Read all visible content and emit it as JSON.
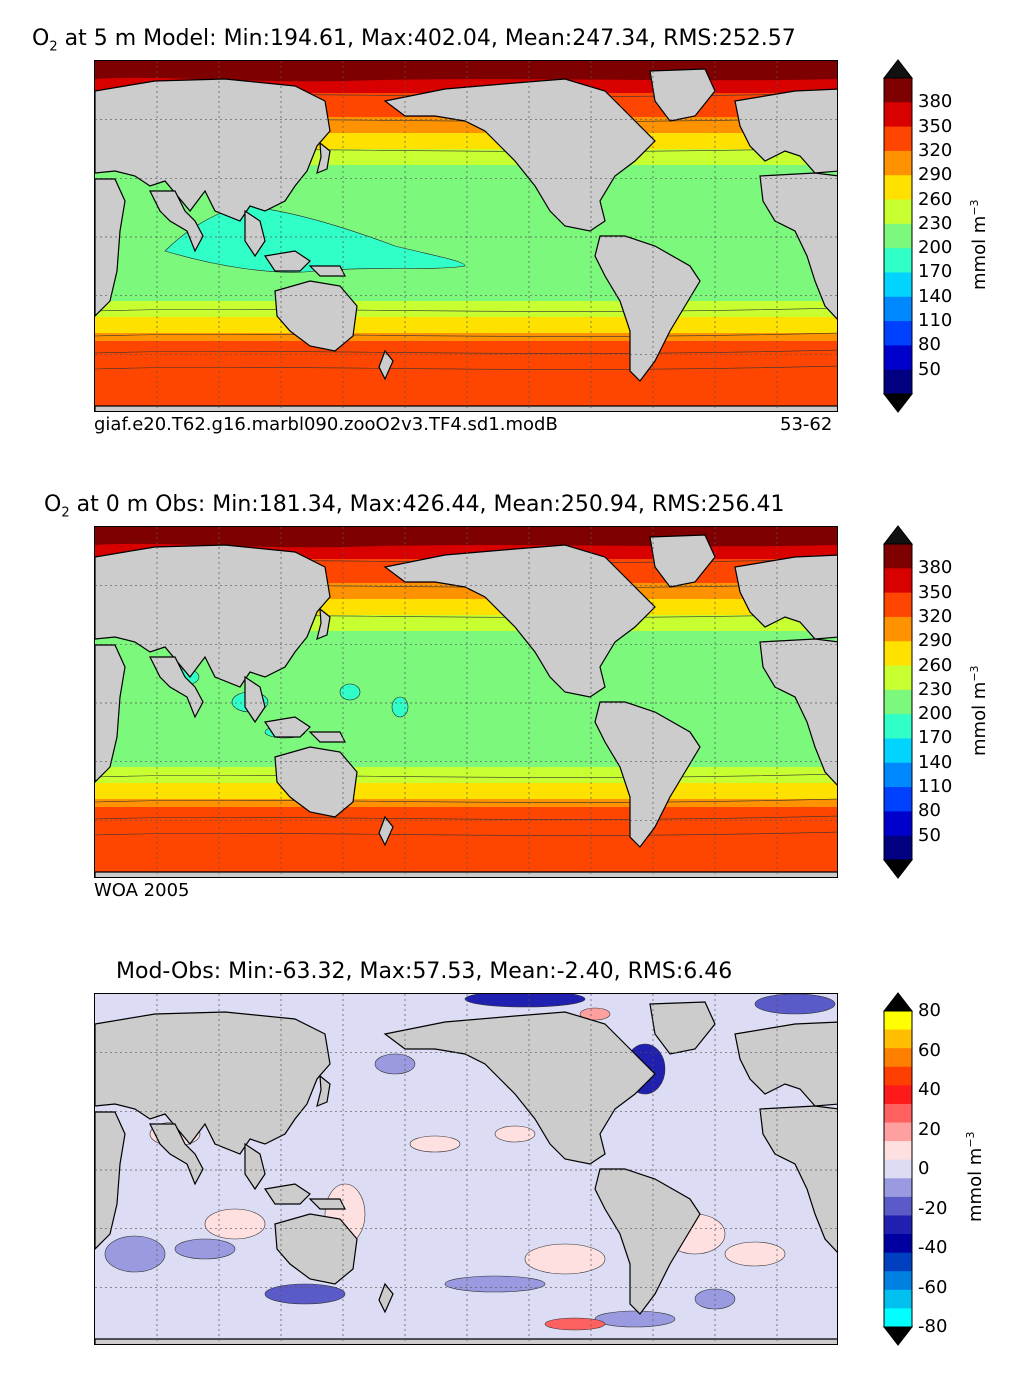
{
  "panels": [
    {
      "title_prefix": "O",
      "title_sub": "2",
      "title_rest": " at 5 m Model: Min:194.61, Max:402.04, Mean:247.34, RMS:252.57",
      "caption_left": "giaf.e20.T62.g16.marbl090.zooO2v3.TF4.sd1.modB",
      "caption_right": "53-62",
      "colorbar_ticks": [
        "380",
        "350",
        "320",
        "290",
        "260",
        "230",
        "200",
        "170",
        "140",
        "110",
        "80",
        "50"
      ],
      "colorbar_colors": [
        "#7f0000",
        "#d90000",
        "#ff4600",
        "#ff9200",
        "#ffe100",
        "#c8ff30",
        "#7cf87c",
        "#30ffc8",
        "#00d4ff",
        "#0088ff",
        "#0040ff",
        "#0000cc",
        "#000080"
      ],
      "unit_label": "mmol m",
      "unit_sup": "−3"
    },
    {
      "title_prefix": "O",
      "title_sub": "2",
      "title_rest": " at 0 m Obs: Min:181.34, Max:426.44, Mean:250.94, RMS:256.41",
      "caption_left": "WOA 2005",
      "caption_right": "",
      "colorbar_ticks": [
        "380",
        "350",
        "320",
        "290",
        "260",
        "230",
        "200",
        "170",
        "140",
        "110",
        "80",
        "50"
      ],
      "colorbar_colors": [
        "#7f0000",
        "#d90000",
        "#ff4600",
        "#ff9200",
        "#ffe100",
        "#c8ff30",
        "#7cf87c",
        "#30ffc8",
        "#00d4ff",
        "#0088ff",
        "#0040ff",
        "#0000cc",
        "#000080"
      ],
      "unit_label": "mmol m",
      "unit_sup": "−3"
    },
    {
      "title_prefix": "",
      "title_sub": "",
      "title_rest": "Mod-Obs: Min:-63.32, Max:57.53, Mean:-2.40, RMS:6.46",
      "caption_left": "",
      "caption_right": "",
      "colorbar_ticks": [
        "80",
        "60",
        "40",
        "20",
        "0",
        "-20",
        "-40",
        "-60",
        "-80"
      ],
      "colorbar_colors": [
        "#ffff00",
        "#ffbf00",
        "#ff7f00",
        "#ff3f00",
        "#ff1a1a",
        "#ff6060",
        "#ffa0a0",
        "#ffe0e0",
        "#dcdcf5",
        "#9a9ae0",
        "#5a5ac8",
        "#2020b0",
        "#0000a0",
        "#0040c0",
        "#0080e0",
        "#00c0f0",
        "#00ffff"
      ],
      "unit_label": "mmol m",
      "unit_sup": "−3"
    }
  ],
  "colors": {
    "land": "#cccccc",
    "grid": "#555555"
  }
}
